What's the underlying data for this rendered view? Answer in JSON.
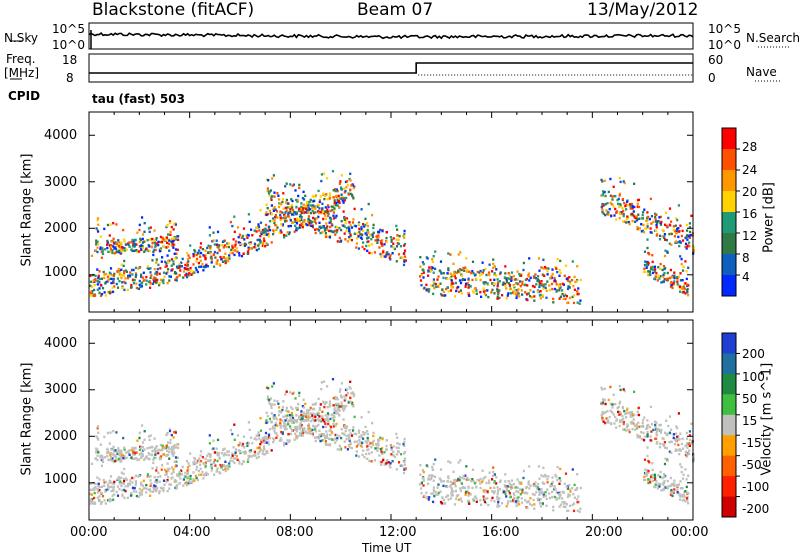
{
  "header": {
    "site": "Blackstone (fitACF)",
    "beam": "Beam 07",
    "date": "13/May/2012"
  },
  "noise_panel": {
    "left_label": "N.Sky",
    "left_ticks": [
      "10^5",
      "10^0"
    ],
    "right_label": "N.Search",
    "right_ticks": [
      "10^5",
      "10^0"
    ]
  },
  "freq_panel": {
    "left_label_1": "Freq.",
    "left_label_2": "[MHz]",
    "left_ticks": [
      "18",
      "8"
    ],
    "right_label": "Nave",
    "right_ticks": [
      "60",
      "0"
    ],
    "cpid_label": "CPID",
    "mode_label": "tau (fast) 503"
  },
  "chart_data": [
    {
      "type": "heatmap",
      "name": "power",
      "ylabel": "Slant Range [km]",
      "y_ticks": [
        "4000",
        "3000",
        "2000",
        "1000"
      ],
      "ylim": [
        200,
        4500
      ],
      "xlim_hours": [
        0,
        24
      ],
      "colorbar_label": "Power [dB]",
      "colorbar_ticks": [
        "28",
        "24",
        "20",
        "16",
        "12",
        "8",
        "4"
      ],
      "colorbar_colors": [
        "#ff0000",
        "#ff5000",
        "#ff9800",
        "#ffd200",
        "#1f9a76",
        "#2f7a44",
        "#0f5fbe",
        "#0028ff"
      ]
    },
    {
      "type": "heatmap",
      "name": "velocity",
      "ylabel": "Slant Range [km]",
      "y_ticks": [
        "4000",
        "3000",
        "2000",
        "1000"
      ],
      "ylim": [
        200,
        4500
      ],
      "xlim_hours": [
        0,
        24
      ],
      "x_ticks": [
        "00:00",
        "04:00",
        "08:00",
        "12:00",
        "16:00",
        "20:00",
        "00:00"
      ],
      "xlabel": "Time UT",
      "colorbar_label": "Velocity [m s^-1]",
      "colorbar_ticks": [
        "200",
        "100",
        "50",
        "15",
        "-15",
        "-50",
        "-100",
        "-200"
      ],
      "colorbar_colors": [
        "#1f3fd2",
        "#1f6fa0",
        "#1f8a44",
        "#3fbf3f",
        "#c0c0bc",
        "#ffa000",
        "#ff6000",
        "#ff2000",
        "#d00000"
      ]
    }
  ]
}
